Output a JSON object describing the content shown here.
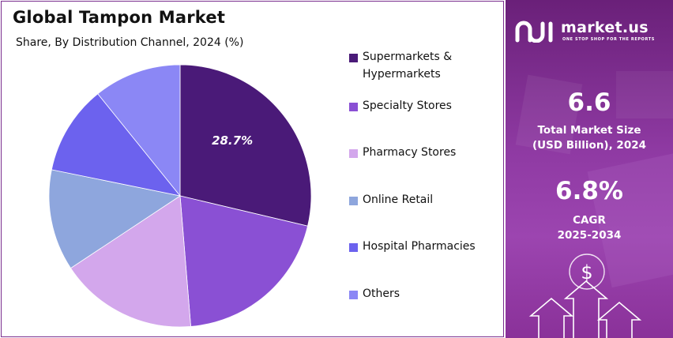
{
  "chart_data": {
    "type": "pie",
    "title": "Global Tampon Market",
    "subtitle": "Share, By Distribution Channel, 2024 (%)",
    "categories": [
      "Supermarkets & Hypermarkets",
      "Specialty Stores",
      "Pharmacy Stores",
      "Online Retail",
      "Hospital Pharmacies",
      "Others"
    ],
    "values": [
      28.7,
      20.0,
      17.0,
      12.5,
      11.0,
      10.8
    ],
    "data_labels": [
      "28.7%",
      "",
      "",
      "",
      "",
      ""
    ],
    "colors": [
      "#4a1a78",
      "#8a50d4",
      "#d3a7ec",
      "#8ea6dd",
      "#6c62ee",
      "#8b87f5"
    ],
    "legend_position": "right"
  },
  "legend": {
    "items": [
      {
        "label_line1": "Supermarkets &",
        "label_line2": "Hypermarkets",
        "color": "#4a1a78"
      },
      {
        "label_line1": "Specialty Stores",
        "label_line2": "",
        "color": "#8a50d4"
      },
      {
        "label_line1": "Pharmacy Stores",
        "label_line2": "",
        "color": "#d3a7ec"
      },
      {
        "label_line1": "Online Retail",
        "label_line2": "",
        "color": "#8ea6dd"
      },
      {
        "label_line1": "Hospital Pharmacies",
        "label_line2": "",
        "color": "#6c62ee"
      },
      {
        "label_line1": "Others",
        "label_line2": "",
        "color": "#8b87f5"
      }
    ]
  },
  "panel": {
    "brand_name": "market.us",
    "brand_tagline": "ONE STOP SHOP FOR THE REPORTS",
    "market_size_value": "6.6",
    "market_size_line1": "Total Market Size",
    "market_size_line2": "(USD Billion), 2024",
    "cagr_value": "6.8%",
    "cagr_line1": "CAGR",
    "cagr_line2": "2025-2034",
    "background_color": "#8f3aa3"
  }
}
